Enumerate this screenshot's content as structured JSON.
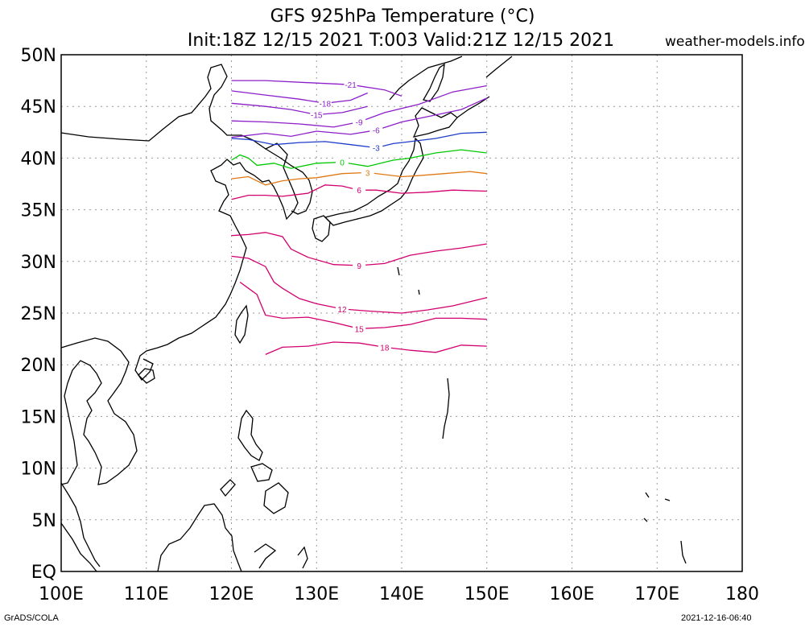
{
  "header": {
    "title": "GFS 925hPa Temperature (°C)",
    "subtitle": "Init:18Z 12/15 2021 T:003 Valid:21Z 12/15 2021",
    "site": "weather-models.info"
  },
  "footer": {
    "left": "GrADS/COLA",
    "right": "2021-12-16-06:40"
  },
  "map": {
    "lon_labels": [
      "100E",
      "110E",
      "120E",
      "130E",
      "140E",
      "150E",
      "160E",
      "170E",
      "180"
    ],
    "lat_labels": [
      "50N",
      "45N",
      "40N",
      "35N",
      "30N",
      "25N",
      "20N",
      "15N",
      "10N",
      "5N",
      "EQ"
    ],
    "lon_range": [
      100,
      180
    ],
    "lat_range": [
      0,
      50
    ],
    "data_domain": {
      "lon": [
        120,
        150
      ],
      "lat": [
        20,
        50
      ]
    },
    "grid": true,
    "colors": {
      "cold": "#8c1fc8",
      "minus3": "#1f3cc8",
      "zero": "#00c800",
      "plus3": "#e07814",
      "warm": "#d2006e",
      "coast": "#000000"
    }
  },
  "chart_data": {
    "type": "contour",
    "variable": "925hPa temperature",
    "unit": "°C",
    "contours": [
      {
        "value": -21,
        "color": "#8c1fc8",
        "points": [
          [
            120,
            47.5
          ],
          [
            124,
            47.5
          ],
          [
            129,
            47.3
          ],
          [
            134,
            47.1
          ],
          [
            138,
            46.6
          ],
          [
            140,
            46.0
          ]
        ]
      },
      {
        "value": -18,
        "color": "#8c1fc8",
        "points": [
          [
            120,
            46.5
          ],
          [
            124,
            46.1
          ],
          [
            128,
            45.7
          ],
          [
            131,
            45.3
          ],
          [
            134,
            45.6
          ],
          [
            136,
            46.3
          ]
        ]
      },
      {
        "value": -15,
        "color": "#8c1fc8",
        "points": [
          [
            120,
            45.3
          ],
          [
            124,
            45.0
          ],
          [
            127,
            44.7
          ],
          [
            130,
            44.2
          ],
          [
            133,
            44.4
          ],
          [
            136,
            45.0
          ]
        ]
      },
      {
        "value": -9,
        "color": "#8c1fc8",
        "points": [
          [
            120,
            43.6
          ],
          [
            124,
            43.5
          ],
          [
            128,
            43.3
          ],
          [
            132,
            43.0
          ],
          [
            135,
            43.5
          ],
          [
            138,
            44.4
          ],
          [
            142,
            45.2
          ],
          [
            146,
            46.4
          ],
          [
            150,
            47.0
          ]
        ]
      },
      {
        "value": -6,
        "color": "#8c1fc8",
        "points": [
          [
            120,
            42.0
          ],
          [
            124,
            42.4
          ],
          [
            127,
            42.1
          ],
          [
            130,
            42.6
          ],
          [
            134,
            42.3
          ],
          [
            137,
            42.7
          ],
          [
            140,
            43.5
          ],
          [
            143,
            44.0
          ],
          [
            147,
            44.7
          ],
          [
            150,
            45.8
          ]
        ]
      },
      {
        "value": -3,
        "color": "#1f3cc8",
        "points": [
          [
            120,
            41.9
          ],
          [
            122,
            41.8
          ],
          [
            125,
            41.3
          ],
          [
            128,
            41.5
          ],
          [
            131,
            41.6
          ],
          [
            134,
            41.3
          ],
          [
            137,
            41.0
          ],
          [
            139,
            41.4
          ],
          [
            141,
            41.6
          ],
          [
            144,
            41.9
          ],
          [
            147,
            42.4
          ],
          [
            150,
            42.5
          ]
        ]
      },
      {
        "value": 0,
        "color": "#00c800",
        "points": [
          [
            120,
            39.8
          ],
          [
            121,
            40.3
          ],
          [
            122,
            40.0
          ],
          [
            123,
            39.3
          ],
          [
            125,
            39.5
          ],
          [
            127,
            39.0
          ],
          [
            130,
            39.5
          ],
          [
            133,
            39.6
          ],
          [
            136,
            39.2
          ],
          [
            139,
            39.8
          ],
          [
            141,
            40.0
          ],
          [
            144,
            40.5
          ],
          [
            147,
            40.8
          ],
          [
            150,
            40.5
          ]
        ]
      },
      {
        "value": 3,
        "color": "#e07814",
        "points": [
          [
            120,
            38.0
          ],
          [
            122,
            38.2
          ],
          [
            124,
            37.4
          ],
          [
            126,
            37.8
          ],
          [
            128,
            38.0
          ],
          [
            130,
            38.1
          ],
          [
            133,
            38.5
          ],
          [
            136,
            38.6
          ],
          [
            140,
            38.2
          ],
          [
            142,
            38.3
          ],
          [
            145,
            38.5
          ],
          [
            148,
            38.7
          ],
          [
            150,
            38.5
          ]
        ]
      },
      {
        "value": 6,
        "color": "#d2006e",
        "points": [
          [
            120,
            36.0
          ],
          [
            122,
            36.4
          ],
          [
            124,
            36.4
          ],
          [
            126,
            36.3
          ],
          [
            129,
            36.6
          ],
          [
            131,
            37.4
          ],
          [
            133,
            37.3
          ],
          [
            135,
            36.9
          ],
          [
            137,
            36.9
          ],
          [
            140,
            36.6
          ],
          [
            143,
            36.7
          ],
          [
            146,
            36.9
          ],
          [
            150,
            36.8
          ]
        ]
      },
      {
        "value": 9,
        "color": "#d2006e",
        "points": [
          [
            120,
            32.5
          ],
          [
            122,
            32.6
          ],
          [
            124,
            32.8
          ],
          [
            126,
            32.4
          ],
          [
            127,
            31.2
          ],
          [
            129,
            30.4
          ],
          [
            132,
            29.7
          ],
          [
            135,
            29.6
          ],
          [
            138,
            29.8
          ],
          [
            141,
            30.6
          ],
          [
            144,
            31.0
          ],
          [
            147,
            31.3
          ],
          [
            150,
            31.7
          ]
        ]
      },
      {
        "value": 12,
        "color": "#d2006e",
        "points": [
          [
            120,
            30.5
          ],
          [
            122,
            30.3
          ],
          [
            124,
            29.5
          ],
          [
            125,
            28.0
          ],
          [
            126,
            27.4
          ],
          [
            128,
            26.4
          ],
          [
            130,
            25.9
          ],
          [
            133,
            25.4
          ],
          [
            136,
            25.2
          ],
          [
            140,
            25.0
          ],
          [
            143,
            25.3
          ],
          [
            146,
            25.7
          ],
          [
            150,
            26.5
          ]
        ]
      },
      {
        "value": 15,
        "color": "#d2006e",
        "points": [
          [
            121,
            28.0
          ],
          [
            122,
            27.4
          ],
          [
            123,
            26.8
          ],
          [
            124,
            24.8
          ],
          [
            126,
            24.5
          ],
          [
            129,
            24.6
          ],
          [
            132,
            24.1
          ],
          [
            135,
            23.5
          ],
          [
            138,
            23.6
          ],
          [
            141,
            23.9
          ],
          [
            144,
            24.5
          ],
          [
            147,
            24.5
          ],
          [
            150,
            24.4
          ]
        ]
      },
      {
        "value": 18,
        "color": "#d2006e",
        "points": [
          [
            124,
            21.0
          ],
          [
            126,
            21.7
          ],
          [
            129,
            21.8
          ],
          [
            132,
            22.2
          ],
          [
            135,
            22.1
          ],
          [
            138,
            21.7
          ],
          [
            141,
            21.4
          ],
          [
            144,
            21.2
          ],
          [
            147,
            21.9
          ],
          [
            150,
            21.8
          ]
        ]
      }
    ]
  }
}
